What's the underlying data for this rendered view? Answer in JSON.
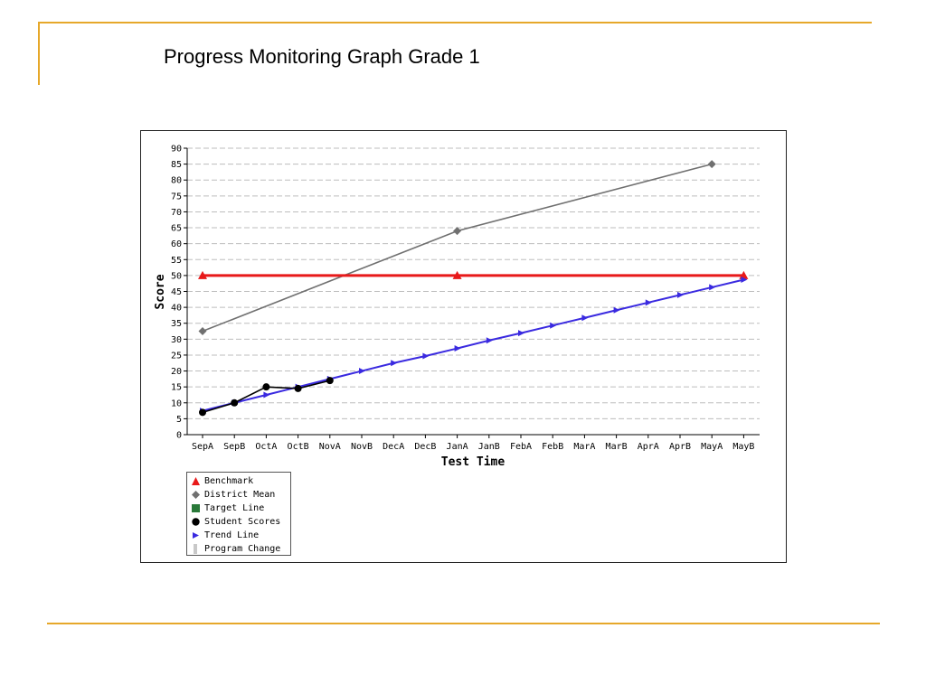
{
  "slide": {
    "title": "Progress Monitoring Graph Grade 1",
    "accent_color": "#E6A82A"
  },
  "chart_data": {
    "type": "line",
    "title": "",
    "xlabel": "Test Time",
    "ylabel": "Score",
    "ylim": [
      0,
      90
    ],
    "y_ticks": [
      0,
      5,
      10,
      15,
      20,
      25,
      30,
      35,
      40,
      45,
      50,
      55,
      60,
      65,
      70,
      75,
      80,
      85,
      90
    ],
    "grid": "horizontal dashed",
    "legend_placement": "bottom-left",
    "categories": [
      "SepA",
      "SepB",
      "OctA",
      "OctB",
      "NovA",
      "NovB",
      "DecA",
      "DecB",
      "JanA",
      "JanB",
      "FebA",
      "FebB",
      "MarA",
      "MarB",
      "AprA",
      "AprB",
      "MayA",
      "MayB"
    ],
    "series": [
      {
        "name": "Benchmark",
        "marker": "triangle-up-icon",
        "color": "#E8191A",
        "points": [
          {
            "x": "SepA",
            "y": 50
          },
          {
            "x": "JanA",
            "y": 50
          },
          {
            "x": "MayB",
            "y": 50
          }
        ]
      },
      {
        "name": "District Mean",
        "marker": "diamond-icon",
        "color": "#707070",
        "points": [
          {
            "x": "SepA",
            "y": 32.5
          },
          {
            "x": "JanA",
            "y": 64
          },
          {
            "x": "MayA",
            "y": 85
          }
        ]
      },
      {
        "name": "Target Line",
        "marker": "square-icon",
        "color": "#2A7A3A",
        "points": []
      },
      {
        "name": "Student Scores",
        "marker": "circle-icon",
        "color": "#000000",
        "points": [
          {
            "x": "SepA",
            "y": 7
          },
          {
            "x": "SepB",
            "y": 10
          },
          {
            "x": "OctA",
            "y": 15
          },
          {
            "x": "OctB",
            "y": 14.5
          },
          {
            "x": "NovA",
            "y": 17
          }
        ]
      },
      {
        "name": "Trend Line",
        "marker": "triangle-right-icon",
        "color": "#3A2AE0",
        "points": [
          {
            "x": "SepA",
            "y": 7.5
          },
          {
            "x": "SepB",
            "y": 10
          },
          {
            "x": "OctA",
            "y": 12.5
          },
          {
            "x": "OctB",
            "y": 15
          },
          {
            "x": "NovA",
            "y": 17.5
          },
          {
            "x": "NovB",
            "y": 20
          },
          {
            "x": "DecA",
            "y": 22.5
          },
          {
            "x": "DecB",
            "y": 24.7
          },
          {
            "x": "JanA",
            "y": 27.1
          },
          {
            "x": "JanB",
            "y": 29.6
          },
          {
            "x": "FebA",
            "y": 31.9
          },
          {
            "x": "FebB",
            "y": 34.3
          },
          {
            "x": "MarA",
            "y": 36.7
          },
          {
            "x": "MarB",
            "y": 39.1
          },
          {
            "x": "AprA",
            "y": 41.5
          },
          {
            "x": "AprB",
            "y": 43.9
          },
          {
            "x": "MayA",
            "y": 46.3
          },
          {
            "x": "MayB",
            "y": 48.7
          }
        ]
      },
      {
        "name": "Program Change",
        "marker": "bar-icon",
        "color": "#C8C8C8",
        "points": []
      }
    ]
  }
}
